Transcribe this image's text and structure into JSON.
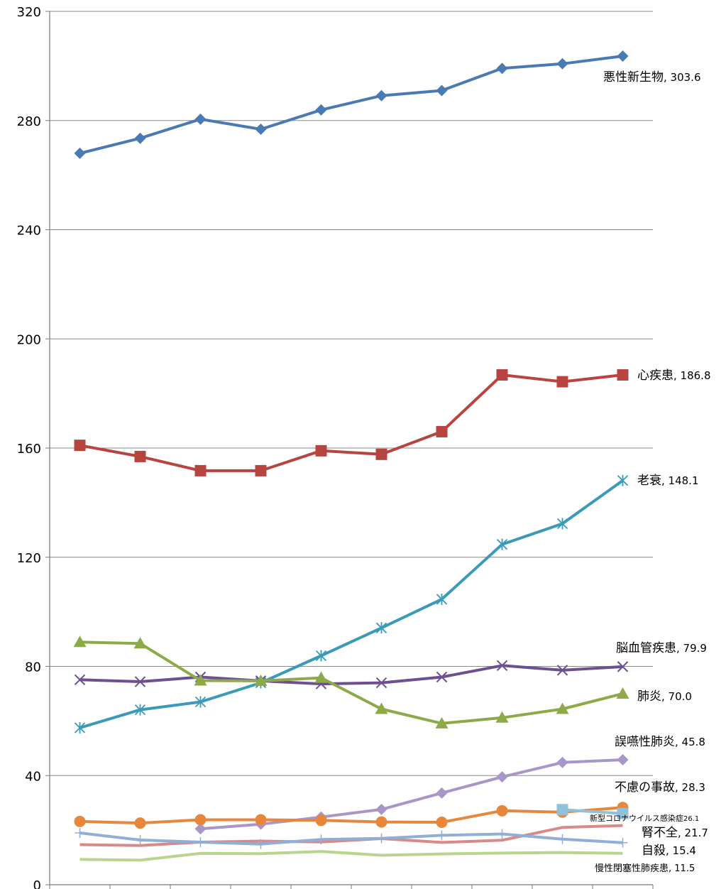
{
  "chart_data": {
    "type": "line",
    "title": "",
    "xlabel": "",
    "ylabel": "",
    "ylim": [
      0,
      320
    ],
    "y_ticks": [
      "0",
      "40",
      "80",
      "120",
      "160",
      "200",
      "240",
      "280",
      "320"
    ],
    "grid": true,
    "x": [
      1,
      2,
      3,
      4,
      5,
      6,
      7,
      8,
      9,
      10
    ],
    "series": [
      {
        "name": "悪性新生物",
        "value_label": "303.6",
        "color": "#4a7ab4",
        "marker": "diamond",
        "values": [
          268.0,
          273.5,
          280.5,
          276.8,
          283.9,
          289.1,
          291.0,
          299.1,
          300.8,
          303.6
        ]
      },
      {
        "name": "心疾患",
        "value_label": "186.8",
        "color": "#b84440",
        "marker": "square",
        "values": [
          161.0,
          156.9,
          151.7,
          151.7,
          159.0,
          157.7,
          166.0,
          186.8,
          184.3,
          186.8
        ]
      },
      {
        "name": "老衰",
        "value_label": "148.1",
        "color": "#3a9ab8",
        "marker": "asterisk",
        "values": [
          57.5,
          64.1,
          67.0,
          74.0,
          83.9,
          94.1,
          104.6,
          124.7,
          132.3,
          148.1
        ]
      },
      {
        "name": "脳血管疾患",
        "value_label": "79.9",
        "color": "#6e5090",
        "marker": "x",
        "values": [
          75.1,
          74.4,
          76.1,
          74.7,
          73.6,
          74.0,
          76.1,
          80.3,
          78.6,
          79.9
        ]
      },
      {
        "name": "肺炎",
        "value_label": "70.0",
        "color": "#8cab48",
        "marker": "triangle",
        "values": [
          88.9,
          88.4,
          74.8,
          74.7,
          75.8,
          64.4,
          59.1,
          61.2,
          64.4,
          70.0
        ]
      },
      {
        "name": "誤嚥性肺炎",
        "value_label": "45.8",
        "color": "#a896c8",
        "marker": "diamond",
        "values": [
          null,
          null,
          20.5,
          22.2,
          24.8,
          27.6,
          33.6,
          39.5,
          44.8,
          45.8
        ]
      },
      {
        "name": "不慮の事故",
        "value_label": "28.3",
        "color": "#e8863a",
        "marker": "circle",
        "values": [
          23.2,
          22.6,
          23.8,
          23.8,
          23.6,
          23.0,
          22.9,
          27.1,
          26.6,
          28.3
        ]
      },
      {
        "name": "新型コロナウイルス感染症",
        "value_label": "26.1",
        "color": "#90c0da",
        "marker": "square",
        "values": [
          null,
          null,
          null,
          null,
          null,
          null,
          null,
          null,
          27.5,
          26.1
        ]
      },
      {
        "name": "腎不全",
        "value_label": "21.7",
        "color": "#d88a8a",
        "marker": "none",
        "values": [
          14.7,
          14.4,
          15.6,
          16.0,
          15.7,
          16.9,
          15.5,
          16.3,
          21.0,
          21.7
        ]
      },
      {
        "name": "自殺",
        "value_label": "15.4",
        "color": "#90aed6",
        "marker": "plus",
        "values": [
          19.0,
          16.4,
          15.6,
          14.9,
          16.6,
          17.0,
          18.1,
          18.6,
          16.7,
          15.4
        ]
      },
      {
        "name": "慢性閉塞性肺疾患",
        "value_label": "11.5",
        "color": "#b8d490",
        "marker": "none",
        "values": [
          9.3,
          9.0,
          11.5,
          11.4,
          12.2,
          10.8,
          11.3,
          11.6,
          11.8,
          11.5
        ]
      }
    ]
  }
}
